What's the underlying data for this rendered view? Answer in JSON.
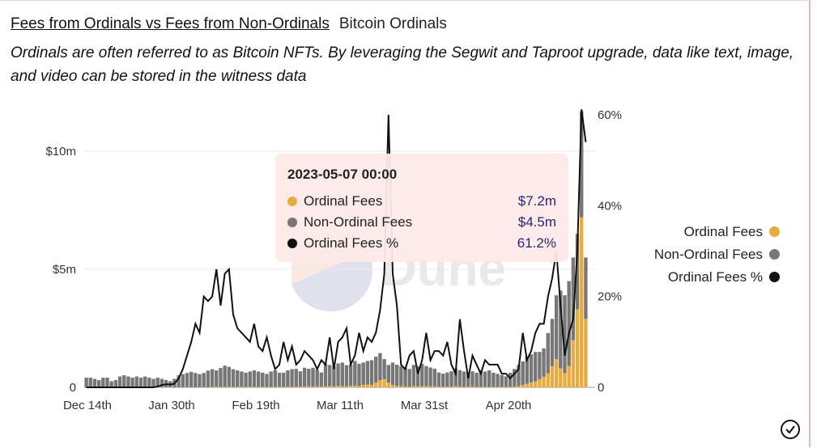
{
  "header": {
    "title": "Fees from Ordinals vs Fees from Non-Ordinals",
    "subtitle": "Bitcoin Ordinals",
    "description": "Ordinals are often referred to as Bitcoin NFTs. By leveraging the Segwit and Taproot upgrade, data like text, image, and video can be stored in the witness data"
  },
  "tooltip": {
    "date": "2023-05-07 00:00",
    "rows": [
      {
        "label": "Ordinal Fees",
        "value": "$7.2m"
      },
      {
        "label": "Non-Ordinal Fees",
        "value": "$4.5m"
      },
      {
        "label": "Ordinal Fees %",
        "value": "61.2%"
      }
    ]
  },
  "colors": {
    "ordinal": "#e8ab3f",
    "non_ordinal": "#777777",
    "pct": "#111111"
  },
  "chart_data": {
    "type": "bar",
    "title": "Fees from Ordinals vs Fees from Non-Ordinals",
    "x_tick_labels": [
      "Dec 14th",
      "Jan 30th",
      "Feb 19th",
      "Mar 11th",
      "Mar 31st",
      "Apr 20th"
    ],
    "y_left": {
      "ticks": [
        "0",
        "$5m",
        "$10m"
      ],
      "tick_values": [
        0,
        5,
        10
      ],
      "range": [
        0,
        11.5
      ],
      "unit": "$m"
    },
    "y_right": {
      "ticks": [
        "0",
        "20%",
        "40%",
        "60%"
      ],
      "tick_values": [
        0,
        20,
        40,
        60
      ],
      "range": [
        0,
        60
      ]
    },
    "legend": {
      "position": "right",
      "items": [
        "Ordinal Fees",
        "Non-Ordinal Fees",
        "Ordinal Fees %"
      ]
    },
    "series": [
      {
        "name": "Ordinal Fees",
        "kind": "stacked-bar",
        "values": [
          0.01,
          0.01,
          0.01,
          0.01,
          0.01,
          0.01,
          0.01,
          0.01,
          0.01,
          0.01,
          0.01,
          0.01,
          0.01,
          0.01,
          0.01,
          0.01,
          0.01,
          0.01,
          0.01,
          0.01,
          0.01,
          0.01,
          0.01,
          0.01,
          0.01,
          0.01,
          0.01,
          0.01,
          0.01,
          0.01,
          0.02,
          0.02,
          0.02,
          0.02,
          0.02,
          0.02,
          0.02,
          0.02,
          0.02,
          0.02,
          0.02,
          0.02,
          0.02,
          0.02,
          0.02,
          0.02,
          0.02,
          0.02,
          0.02,
          0.02,
          0.03,
          0.03,
          0.03,
          0.04,
          0.03,
          0.04,
          0.03,
          0.04,
          0.05,
          0.04,
          0.06,
          0.05,
          0.04,
          0.06,
          0.07,
          0.05,
          0.1,
          0.12,
          0.1,
          0.2,
          0.3,
          0.35,
          0.2,
          0.1,
          0.06,
          0.05,
          0.03,
          0.03,
          0.05,
          0.04,
          0.05,
          0.05,
          0.04,
          0.04,
          0.03,
          0.03,
          0.03,
          0.03,
          0.05,
          0.03,
          0.02,
          0.03,
          0.03,
          0.02,
          0.02,
          0.02,
          0.02,
          0.02,
          0.02,
          0.02,
          0.02,
          0.02,
          0.03,
          0.05,
          0.1,
          0.15,
          0.2,
          0.25,
          0.35,
          0.45,
          0.6,
          0.9,
          1.2,
          0.8,
          0.6,
          0.9,
          2.0,
          3.3,
          7.2,
          2.9
        ]
      },
      {
        "name": "Non-Ordinal Fees",
        "kind": "stacked-bar",
        "values": [
          0.4,
          0.4,
          0.35,
          0.3,
          0.4,
          0.4,
          0.25,
          0.3,
          0.45,
          0.5,
          0.45,
          0.4,
          0.45,
          0.4,
          0.45,
          0.4,
          0.35,
          0.4,
          0.35,
          0.3,
          0.25,
          0.35,
          0.5,
          0.55,
          0.6,
          0.65,
          0.6,
          0.55,
          0.6,
          0.7,
          0.75,
          0.7,
          0.8,
          0.9,
          0.85,
          0.75,
          0.7,
          0.65,
          0.6,
          0.65,
          0.7,
          0.65,
          0.6,
          0.55,
          0.65,
          0.7,
          0.6,
          0.6,
          0.7,
          0.75,
          0.75,
          0.65,
          0.8,
          0.75,
          0.8,
          0.7,
          0.6,
          0.95,
          0.9,
          0.85,
          0.95,
          1.0,
          0.9,
          0.9,
          1.05,
          0.95,
          0.95,
          1.0,
          1.05,
          1.1,
          1.15,
          0.85,
          0.75,
          0.95,
          0.9,
          0.85,
          0.8,
          0.75,
          0.9,
          0.85,
          0.95,
          0.85,
          0.8,
          0.75,
          0.6,
          0.55,
          0.6,
          0.65,
          0.75,
          0.7,
          0.65,
          0.6,
          0.65,
          0.6,
          0.7,
          0.65,
          0.7,
          0.6,
          0.55,
          0.5,
          0.45,
          0.6,
          0.75,
          0.9,
          1.0,
          1.15,
          1.2,
          1.25,
          1.15,
          1.2,
          1.7,
          2.0,
          2.7,
          3.3,
          3.3,
          3.6,
          3.5,
          3.2,
          4.5,
          2.6
        ]
      },
      {
        "name": "Ordinal Fees %",
        "kind": "line",
        "axis": "right",
        "values": [
          0,
          0,
          0,
          0,
          0,
          0,
          0,
          0,
          0,
          0,
          0,
          0,
          0,
          0,
          0,
          0,
          0,
          0.2,
          0.5,
          0.7,
          0.6,
          0.8,
          2,
          4,
          7,
          10,
          14,
          12,
          20,
          19,
          20,
          26,
          18,
          25,
          26,
          16,
          13,
          12,
          11,
          10,
          14,
          9,
          8,
          11,
          7,
          4,
          5,
          10,
          6,
          9,
          5,
          6,
          8,
          7,
          6,
          4,
          6,
          5,
          11,
          4,
          10,
          11,
          13,
          5,
          7,
          12,
          8,
          11,
          10,
          12,
          17,
          25,
          60,
          25,
          18,
          5,
          4,
          7,
          8,
          3,
          6,
          12,
          6,
          8,
          8,
          7,
          10,
          5,
          3,
          15,
          8,
          2,
          7,
          5,
          3,
          6,
          5,
          5,
          5,
          3,
          3,
          2,
          3,
          4,
          12,
          6,
          8,
          12,
          14,
          14,
          20,
          24,
          30,
          18,
          7,
          12,
          15,
          30,
          61.2,
          54
        ]
      }
    ]
  }
}
